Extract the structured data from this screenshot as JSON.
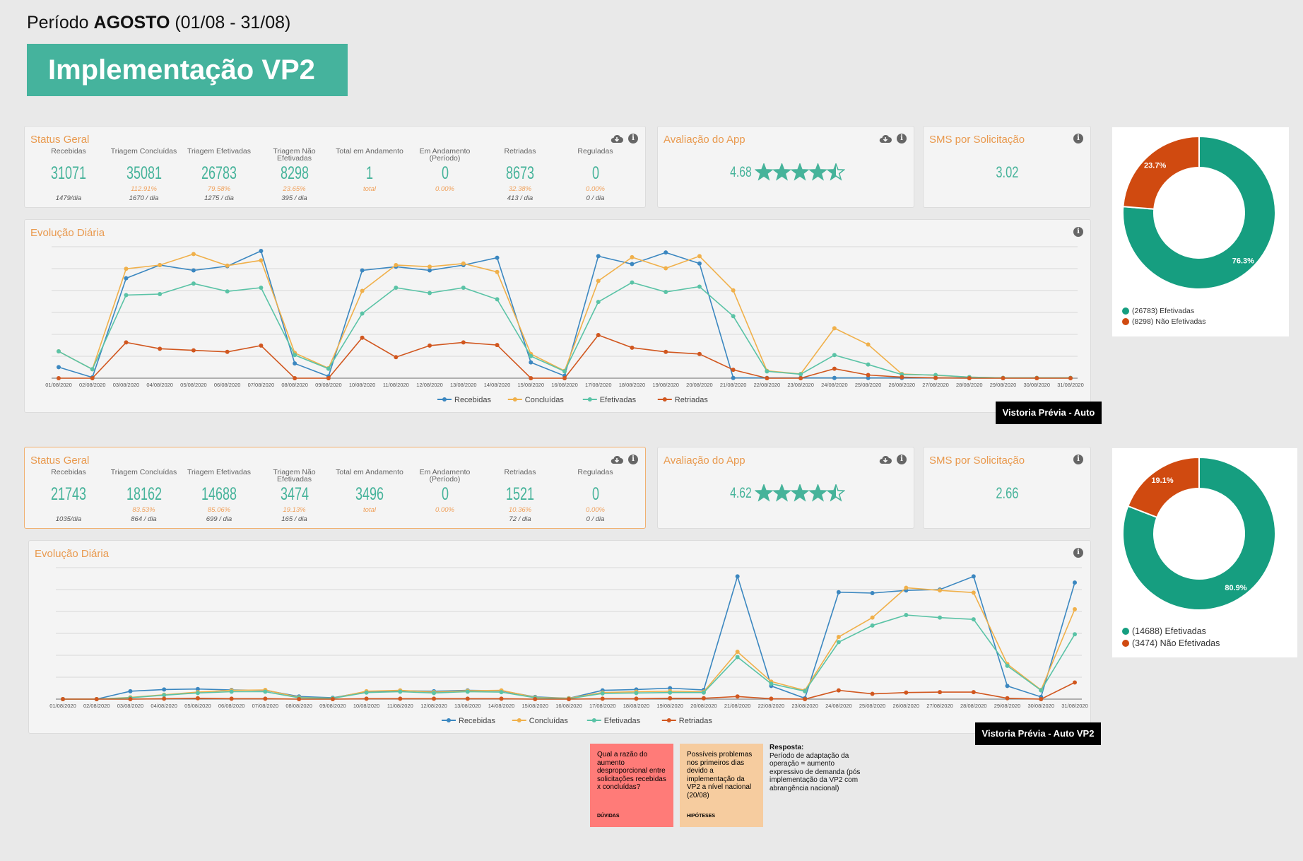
{
  "header": {
    "period_prefix": "Período",
    "period_month": "AGOSTO",
    "period_range": "(01/08 - 31/08)",
    "banner_title": "Implementação VP2"
  },
  "icons": {
    "download": "cloud-download-icon",
    "info": "info-icon",
    "star": "star-icon"
  },
  "colors": {
    "recebidas": "#3b87c0",
    "concluidas": "#f0b04a",
    "efetivadas": "#5ac3a6",
    "retriadas": "#d1571f",
    "accent": "#45b39d",
    "donut_green": "#169e80",
    "donut_orange": "#d04a10"
  },
  "kpi_labels": [
    "Recebidas",
    "Triagem Concluídas",
    "Triagem Efetivadas",
    "Triagem Não Efetivadas",
    "Total em Andamento",
    "Em Andamento (Período)",
    "Retriadas",
    "Reguladas"
  ],
  "sections": [
    {
      "status_title": "Status Geral",
      "kpis": [
        {
          "value": "31071",
          "pct": "",
          "rate": "1479/dia"
        },
        {
          "value": "35081",
          "pct": "112.91%",
          "rate": "1670 / dia"
        },
        {
          "value": "26783",
          "pct": "79.58%",
          "rate": "1275 / dia"
        },
        {
          "value": "8298",
          "pct": "23.65%",
          "rate": "395 / dia"
        },
        {
          "value": "1",
          "pct": "total",
          "rate": ""
        },
        {
          "value": "0",
          "pct": "0.00%",
          "rate": ""
        },
        {
          "value": "8673",
          "pct": "32.38%",
          "rate": "413 / dia"
        },
        {
          "value": "0",
          "pct": "0.00%",
          "rate": "0 / dia"
        }
      ],
      "app_title": "Avaliação do App",
      "app_rating": "4.68",
      "app_stars": 4.5,
      "sms_title": "SMS por Solicitação",
      "sms_value": "3.02",
      "chart_title": "Evolução Diária",
      "tag": "Vistoria Prévia - Auto",
      "donut": {
        "slices": [
          {
            "label": "76.3%",
            "value": 76.3
          },
          {
            "label": "23.7%",
            "value": 23.7
          }
        ],
        "legend": [
          "(26783) Efetivadas",
          "(8298) Não Efetivadas"
        ]
      }
    },
    {
      "status_title": "Status Geral",
      "kpis": [
        {
          "value": "21743",
          "pct": "",
          "rate": "1035/dia"
        },
        {
          "value": "18162",
          "pct": "83.53%",
          "rate": "864 / dia"
        },
        {
          "value": "14688",
          "pct": "85.06%",
          "rate": "699 / dia"
        },
        {
          "value": "3474",
          "pct": "19.13%",
          "rate": "165 / dia"
        },
        {
          "value": "3496",
          "pct": "total",
          "rate": ""
        },
        {
          "value": "0",
          "pct": "0.00%",
          "rate": ""
        },
        {
          "value": "1521",
          "pct": "10.36%",
          "rate": "72 / dia"
        },
        {
          "value": "0",
          "pct": "0.00%",
          "rate": "0 / dia"
        }
      ],
      "app_title": "Avaliação do App",
      "app_rating": "4.62",
      "app_stars": 4.5,
      "sms_title": "SMS por Solicitação",
      "sms_value": "2.66",
      "chart_title": "Evolução Diária",
      "tag": "Vistoria Prévia - Auto VP2",
      "donut": {
        "slices": [
          {
            "label": "80.9%",
            "value": 80.9
          },
          {
            "label": "19.1%",
            "value": 19.1
          }
        ],
        "legend": [
          "(14688) Efetivadas",
          "(3474) Não Efetivadas"
        ]
      }
    }
  ],
  "chart_data": [
    {
      "type": "line",
      "title": "Evolução Diária",
      "x": [
        "01/08/2020",
        "02/08/2020",
        "03/08/2020",
        "04/08/2020",
        "05/08/2020",
        "06/08/2020",
        "07/08/2020",
        "08/08/2020",
        "09/08/2020",
        "10/08/2020",
        "11/08/2020",
        "12/08/2020",
        "13/08/2020",
        "14/08/2020",
        "15/08/2020",
        "16/08/2020",
        "17/08/2020",
        "18/08/2020",
        "19/08/2020",
        "20/08/2020",
        "21/08/2020",
        "22/08/2020",
        "23/08/2020",
        "24/08/2020",
        "25/08/2020",
        "26/08/2020",
        "27/08/2020",
        "28/08/2020",
        "29/08/2020",
        "30/08/2020",
        "31/08/2020"
      ],
      "ylim": [
        0,
        2500
      ],
      "grid": true,
      "legend_position": "bottom",
      "series": [
        {
          "name": "Recebidas",
          "values": [
            210,
            15,
            1900,
            2150,
            2050,
            2130,
            2420,
            280,
            35,
            2050,
            2120,
            2050,
            2150,
            2290,
            300,
            45,
            2320,
            2170,
            2390,
            2180,
            5,
            5,
            5,
            5,
            5,
            5,
            5,
            5,
            5,
            5,
            5
          ]
        },
        {
          "name": "Concluídas",
          "values": [
            510,
            170,
            2080,
            2150,
            2360,
            2140,
            2240,
            480,
            190,
            1660,
            2150,
            2120,
            2180,
            2020,
            460,
            140,
            1850,
            2300,
            2090,
            2320,
            1670,
            140,
            80,
            950,
            640,
            80,
            55,
            20,
            5,
            5,
            5
          ]
        },
        {
          "name": "Efetivadas",
          "values": [
            510,
            170,
            1580,
            1600,
            1800,
            1650,
            1720,
            440,
            180,
            1230,
            1720,
            1620,
            1720,
            1500,
            420,
            130,
            1450,
            1820,
            1640,
            1740,
            1180,
            130,
            75,
            440,
            260,
            70,
            60,
            20,
            5,
            5,
            5
          ]
        },
        {
          "name": "Retriadas",
          "values": [
            0,
            0,
            680,
            560,
            530,
            500,
            620,
            0,
            0,
            770,
            400,
            620,
            680,
            630,
            0,
            0,
            820,
            580,
            500,
            460,
            160,
            0,
            0,
            180,
            60,
            20,
            5,
            0,
            0,
            0,
            0
          ]
        }
      ]
    },
    {
      "type": "line",
      "title": "Evolução Diária",
      "x": [
        "01/08/2020",
        "02/08/2020",
        "03/08/2020",
        "04/08/2020",
        "05/08/2020",
        "06/08/2020",
        "07/08/2020",
        "08/08/2020",
        "09/08/2020",
        "10/08/2020",
        "11/08/2020",
        "12/08/2020",
        "13/08/2020",
        "14/08/2020",
        "15/08/2020",
        "16/08/2020",
        "17/08/2020",
        "18/08/2020",
        "19/08/2020",
        "20/08/2020",
        "21/08/2020",
        "22/08/2020",
        "23/08/2020",
        "24/08/2020",
        "25/08/2020",
        "26/08/2020",
        "27/08/2020",
        "28/08/2020",
        "29/08/2020",
        "30/08/2020",
        "31/08/2020"
      ],
      "ylim": [
        0,
        3000
      ],
      "grid": true,
      "legend_position": "bottom",
      "series": [
        {
          "name": "Recebidas",
          "values": [
            0,
            0,
            180,
            220,
            230,
            210,
            200,
            60,
            30,
            170,
            190,
            180,
            200,
            190,
            50,
            20,
            200,
            220,
            250,
            210,
            2800,
            300,
            20,
            2440,
            2420,
            2480,
            2500,
            2800,
            300,
            50,
            2660
          ]
        },
        {
          "name": "Concluídas",
          "values": [
            0,
            0,
            40,
            100,
            160,
            200,
            210,
            40,
            20,
            180,
            200,
            160,
            190,
            200,
            40,
            20,
            150,
            170,
            180,
            170,
            1080,
            400,
            200,
            1420,
            1860,
            2540,
            2480,
            2430,
            800,
            210,
            2050
          ]
        },
        {
          "name": "Efetivadas",
          "values": [
            0,
            0,
            30,
            90,
            140,
            170,
            170,
            30,
            20,
            150,
            170,
            140,
            170,
            160,
            30,
            10,
            130,
            140,
            150,
            150,
            960,
            350,
            180,
            1300,
            1680,
            1920,
            1860,
            1820,
            760,
            200,
            1480
          ]
        },
        {
          "name": "Retriadas",
          "values": [
            0,
            0,
            0,
            10,
            20,
            10,
            10,
            0,
            0,
            10,
            10,
            10,
            10,
            10,
            0,
            0,
            10,
            10,
            20,
            20,
            60,
            10,
            0,
            200,
            120,
            150,
            160,
            160,
            20,
            0,
            380
          ]
        }
      ]
    }
  ],
  "stickies": {
    "question": "Qual a razão do aumento desproporcional entre solicitações recebidas x concluídas?",
    "question_foot": "DÚVIDAS",
    "hypothesis": "Possíveis problemas nos primeiros dias devido a implementação da VP2 a nível nacional (20/08)",
    "hypothesis_foot": "HIPÓTESES",
    "answer_title": "Resposta:",
    "answer_body": "Período de adaptação da operação = aumento expressivo de demanda (pós implementação da VP2 com abrangência nacional)"
  }
}
